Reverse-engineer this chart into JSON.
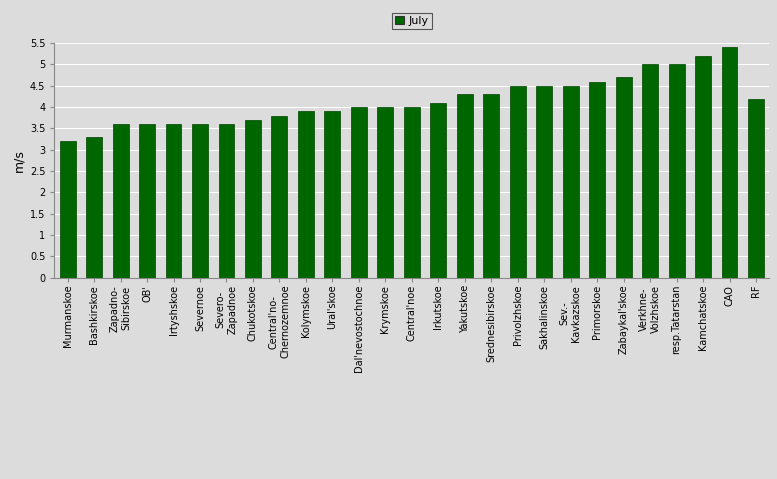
{
  "categories": [
    "Murmanskoe",
    "Bashkirskoe",
    "Zapadno-\nSibirskoe",
    "OB'",
    "Irtyshskoe",
    "Severnoe",
    "Severo-\nZapadnoe",
    "Chukotskoe",
    "Central'no-\nChernozemnoe",
    "Kolymskoe",
    "Ural'skoe",
    "Dal'nevostochnoe",
    "Krymskoe",
    "Central'noe",
    "Irkutskoe",
    "Yakutskoe",
    "Srednesibirskoe",
    "Privolzhskoe",
    "Sakhalinskoe",
    "Sev.-\nKavkazskoe",
    "Primorskoe",
    "Zabaykal'skoe",
    "Verkhne-\nVolzhskoe",
    "resp.Tatarstan",
    "Kamchatskoe",
    "CAO",
    "RF"
  ],
  "values": [
    3.2,
    3.3,
    3.6,
    3.6,
    3.6,
    3.6,
    3.6,
    3.7,
    3.8,
    3.9,
    3.9,
    4.0,
    4.0,
    4.0,
    4.1,
    4.3,
    4.3,
    4.5,
    4.5,
    4.5,
    4.6,
    4.7,
    5.0,
    5.0,
    5.2,
    5.4,
    4.2
  ],
  "bar_color": "#006600",
  "bar_edge_color": "#004400",
  "ylabel": "m/s",
  "ylim": [
    0,
    5.5
  ],
  "yticks": [
    0,
    0.5,
    1.0,
    1.5,
    2.0,
    2.5,
    3.0,
    3.5,
    4.0,
    4.5,
    5.0,
    5.5
  ],
  "legend_label": "July",
  "legend_color": "#006600",
  "background_color": "#dcdcdc",
  "tick_fontsize": 7,
  "ylabel_fontsize": 9,
  "bar_width": 0.6
}
